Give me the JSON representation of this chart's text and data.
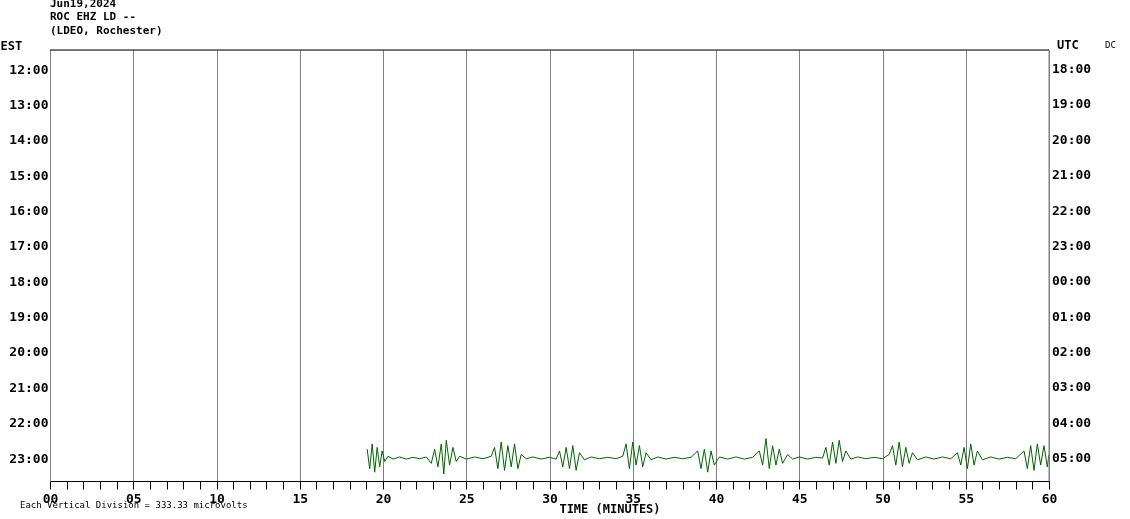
{
  "chart_data": {
    "type": "line",
    "title": "Jun19,2024",
    "subtitle": "ROC EHZ LD --\n(LDEO, Rochester)",
    "xlabel": "TIME (MINUTES)",
    "ylabel": "EST",
    "y2label": "UTC",
    "annotations": [
      "Each Vertical Division =  333.33 microvolts",
      "DC",
      "18:00",
      "19:00",
      "20:00",
      "21:00",
      "22:00",
      "23:00",
      "00:00",
      "01:00",
      "02:00",
      "03:00",
      "04:00",
      "05:00"
    ],
    "x": [
      19.05,
      19.2,
      19.35,
      19.5,
      19.65,
      19.8,
      19.95,
      20.1,
      20.3,
      20.6,
      21.0,
      21.4,
      21.8,
      22.2,
      22.6,
      22.9,
      23.1,
      23.3,
      23.5,
      23.65,
      23.8,
      24.0,
      24.2,
      24.4,
      24.6,
      25.0,
      25.5,
      26.0,
      26.5,
      26.7,
      26.9,
      27.1,
      27.3,
      27.5,
      27.7,
      27.9,
      28.1,
      28.3,
      28.6,
      29.0,
      29.5,
      30.0,
      30.4,
      30.6,
      30.8,
      31.0,
      31.2,
      31.4,
      31.6,
      31.8,
      32.1,
      32.5,
      33.0,
      33.5,
      34.0,
      34.4,
      34.6,
      34.8,
      35.0,
      35.2,
      35.4,
      35.6,
      35.8,
      36.1,
      36.5,
      37.0,
      37.5,
      38.0,
      38.5,
      38.9,
      39.1,
      39.3,
      39.5,
      39.7,
      39.9,
      40.2,
      40.7,
      41.2,
      41.7,
      42.2,
      42.6,
      42.8,
      43.0,
      43.2,
      43.4,
      43.6,
      43.8,
      44.0,
      44.3,
      44.6,
      45.0,
      45.5,
      46.0,
      46.4,
      46.6,
      46.8,
      47.0,
      47.2,
      47.4,
      47.6,
      47.8,
      48.1,
      48.5,
      49.0,
      49.5,
      50.0,
      50.4,
      50.6,
      50.8,
      51.0,
      51.2,
      51.4,
      51.6,
      51.8,
      52.1,
      52.6,
      53.1,
      53.6,
      54.1,
      54.5,
      54.7,
      54.9,
      55.1,
      55.3,
      55.5,
      55.7,
      56.0,
      56.5,
      57.0,
      57.5,
      58.0,
      58.5,
      58.7,
      58.9,
      59.1,
      59.3,
      59.5,
      59.7,
      59.9,
      60.0
    ],
    "series": [
      {
        "color": "#006400",
        "values": [
          22.75,
          23.3,
          22.6,
          23.4,
          22.7,
          23.25,
          22.8,
          23.1,
          22.95,
          23.03,
          22.97,
          23.03,
          22.98,
          23.02,
          22.97,
          23.15,
          22.75,
          23.25,
          22.6,
          23.45,
          22.5,
          23.2,
          22.7,
          23.1,
          22.95,
          23.03,
          22.97,
          23.02,
          22.95,
          22.7,
          23.3,
          22.55,
          23.35,
          22.65,
          23.25,
          22.6,
          23.3,
          22.9,
          23.02,
          22.97,
          23.03,
          22.98,
          23.03,
          22.8,
          23.25,
          22.7,
          23.3,
          22.65,
          23.35,
          22.85,
          23.05,
          22.97,
          23.02,
          22.98,
          23.02,
          22.95,
          22.6,
          23.3,
          22.55,
          23.2,
          22.65,
          23.25,
          22.85,
          23.05,
          22.97,
          23.03,
          22.98,
          23.02,
          22.98,
          22.8,
          23.3,
          22.75,
          23.4,
          22.8,
          23.2,
          22.97,
          23.03,
          22.97,
          23.03,
          22.98,
          22.8,
          23.2,
          22.45,
          23.3,
          22.65,
          23.2,
          22.75,
          23.15,
          22.9,
          23.03,
          22.97,
          23.03,
          22.98,
          23.0,
          22.7,
          23.2,
          22.55,
          23.15,
          22.5,
          23.1,
          22.8,
          23.03,
          22.97,
          23.02,
          22.98,
          23.02,
          22.9,
          22.65,
          23.2,
          22.55,
          23.25,
          22.7,
          23.15,
          22.85,
          23.05,
          22.97,
          23.03,
          22.97,
          23.02,
          22.85,
          23.2,
          22.7,
          23.3,
          22.6,
          23.2,
          22.8,
          23.05,
          22.97,
          23.03,
          22.98,
          23.02,
          22.8,
          23.3,
          22.65,
          23.35,
          22.6,
          23.2,
          22.65,
          23.25,
          22.9
        ]
      }
    ],
    "xlim": [
      0,
      60
    ],
    "xticks": [
      {
        "value": 0,
        "label": "00"
      },
      {
        "value": 1,
        "label": null
      },
      {
        "value": 2,
        "label": null
      },
      {
        "value": 3,
        "label": null
      },
      {
        "value": 4,
        "label": null
      },
      {
        "value": 5,
        "label": "05"
      },
      {
        "value": 6,
        "label": null
      },
      {
        "value": 7,
        "label": null
      },
      {
        "value": 8,
        "label": null
      },
      {
        "value": 9,
        "label": null
      },
      10,
      {
        "value": 11,
        "label": null
      },
      {
        "value": 12,
        "label": null
      },
      {
        "value": 13,
        "label": null
      },
      {
        "value": 14,
        "label": null
      },
      15,
      {
        "value": 16,
        "label": null
      },
      {
        "value": 17,
        "label": null
      },
      {
        "value": 18,
        "label": null
      },
      {
        "value": 19,
        "label": null
      },
      20,
      {
        "value": 21,
        "label": null
      },
      {
        "value": 22,
        "label": null
      },
      {
        "value": 23,
        "label": null
      },
      {
        "value": 24,
        "label": null
      },
      25,
      {
        "value": 26,
        "label": null
      },
      {
        "value": 27,
        "label": null
      },
      {
        "value": 28,
        "label": null
      },
      {
        "value": 29,
        "label": null
      },
      30,
      {
        "value": 31,
        "label": null
      },
      {
        "value": 32,
        "label": null
      },
      {
        "value": 33,
        "label": null
      },
      {
        "value": 34,
        "label": null
      },
      35,
      {
        "value": 36,
        "label": null
      },
      {
        "value": 37,
        "label": null
      },
      {
        "value": 38,
        "label": null
      },
      {
        "value": 39,
        "label": null
      },
      40,
      {
        "value": 41,
        "label": null
      },
      {
        "value": 42,
        "label": null
      },
      {
        "value": 43,
        "label": null
      },
      {
        "value": 44,
        "label": null
      },
      45,
      {
        "value": 46,
        "label": null
      },
      {
        "value": 47,
        "label": null
      },
      {
        "value": 48,
        "label": null
      },
      {
        "value": 49,
        "label": null
      },
      50,
      {
        "value": 51,
        "label": null
      },
      {
        "value": 52,
        "label": null
      },
      {
        "value": 53,
        "label": null
      },
      {
        "value": 54,
        "label": null
      },
      55,
      {
        "value": 56,
        "label": null
      },
      {
        "value": 57,
        "label": null
      },
      {
        "value": 58,
        "label": null
      },
      {
        "value": 59,
        "label": null
      },
      60
    ],
    "ylim": [
      23.65,
      11.46
    ],
    "yticks": [
      {
        "value": 12,
        "label": "12:00"
      },
      {
        "value": 13,
        "label": "13:00"
      },
      {
        "value": 14,
        "label": "14:00"
      },
      {
        "value": 15,
        "label": "15:00"
      },
      {
        "value": 16,
        "label": "16:00"
      },
      {
        "value": 17,
        "label": "17:00"
      },
      {
        "value": 18,
        "label": "18:00"
      },
      {
        "value": 19,
        "label": "19:00"
      },
      {
        "value": 20,
        "label": "20:00"
      },
      {
        "value": 21,
        "label": "21:00"
      },
      {
        "value": 22,
        "label": "22:00"
      },
      {
        "value": 23,
        "label": "23:00"
      }
    ],
    "grid": "x",
    "line_style": "solid",
    "marker": "none"
  }
}
